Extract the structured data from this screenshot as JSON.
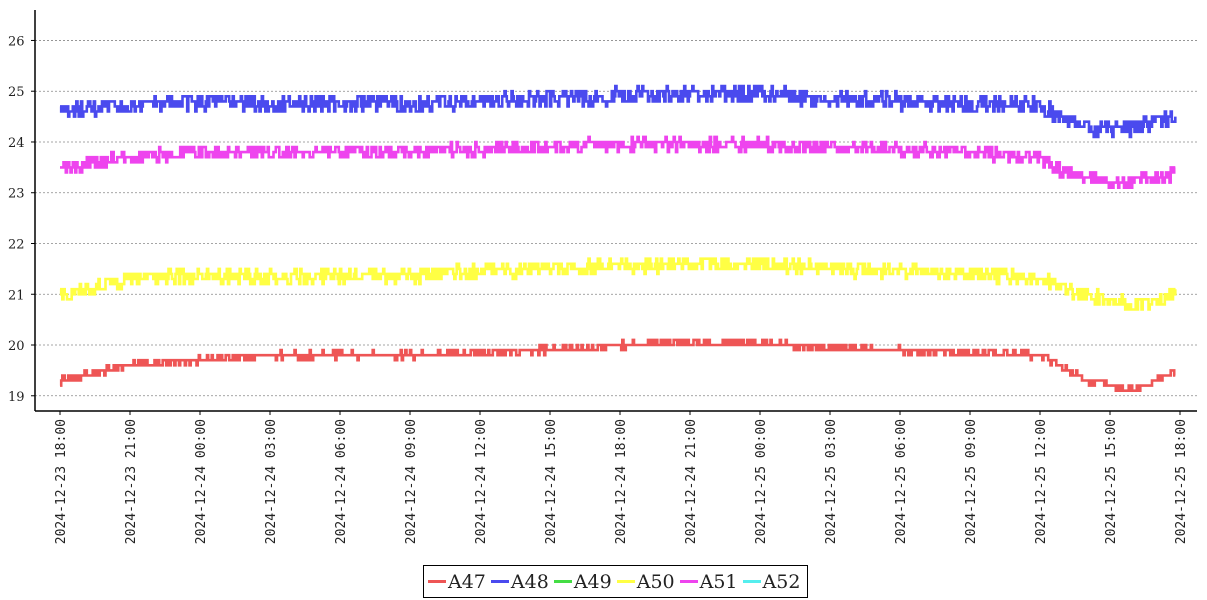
{
  "chart_data": {
    "type": "line",
    "title": "",
    "xlabel": "",
    "ylabel": "",
    "x_range": [
      "2024-12-23 18:00",
      "2024-12-25 18:00"
    ],
    "x_ticks": [
      "2024-12-23 18:00",
      "2024-12-23 21:00",
      "2024-12-24 00:00",
      "2024-12-24 03:00",
      "2024-12-24 06:00",
      "2024-12-24 09:00",
      "2024-12-24 12:00",
      "2024-12-24 15:00",
      "2024-12-24 18:00",
      "2024-12-24 21:00",
      "2024-12-25 00:00",
      "2024-12-25 03:00",
      "2024-12-25 06:00",
      "2024-12-25 09:00",
      "2024-12-25 12:00",
      "2024-12-25 15:00",
      "2024-12-25 18:00"
    ],
    "y_ticks": [
      19,
      20,
      21,
      22,
      23,
      24,
      25,
      26
    ],
    "ylim": [
      18.7,
      26.6
    ],
    "grid": "horizontal dotted",
    "legend_position": "bottom-center",
    "x_hours": [
      0,
      3,
      6,
      9,
      12,
      15,
      18,
      21,
      24,
      27,
      30,
      33,
      36,
      39,
      42,
      43,
      44,
      45,
      46,
      47,
      47.8
    ],
    "series": [
      {
        "name": "A47",
        "color": "#ee5555",
        "values": [
          19.3,
          19.6,
          19.7,
          19.8,
          19.8,
          19.8,
          19.85,
          19.9,
          20.0,
          20.05,
          20.05,
          19.95,
          19.9,
          19.85,
          19.8,
          19.55,
          19.3,
          19.2,
          19.1,
          19.3,
          19.5
        ],
        "noise": 0.06
      },
      {
        "name": "A48",
        "color": "#4a4aee",
        "values": [
          24.6,
          24.7,
          24.8,
          24.75,
          24.75,
          24.75,
          24.8,
          24.85,
          24.9,
          24.95,
          24.95,
          24.85,
          24.8,
          24.75,
          24.7,
          24.5,
          24.3,
          24.25,
          24.3,
          24.4,
          24.5
        ],
        "noise": 0.16
      },
      {
        "name": "A49",
        "color": "#44dd44",
        "values": [],
        "noise": 0
      },
      {
        "name": "A50",
        "color": "#ffff44",
        "values": [
          21.0,
          21.3,
          21.35,
          21.35,
          21.35,
          21.35,
          21.45,
          21.5,
          21.55,
          21.6,
          21.6,
          21.5,
          21.45,
          21.4,
          21.35,
          21.1,
          21.0,
          20.9,
          20.8,
          20.85,
          21.0
        ],
        "noise": 0.14
      },
      {
        "name": "A51",
        "color": "#ee44ee",
        "values": [
          23.5,
          23.7,
          23.8,
          23.8,
          23.8,
          23.8,
          23.85,
          23.9,
          23.95,
          23.95,
          23.95,
          23.9,
          23.85,
          23.8,
          23.7,
          23.4,
          23.3,
          23.25,
          23.2,
          23.3,
          23.4
        ],
        "noise": 0.13
      },
      {
        "name": "A52",
        "color": "#55eeee",
        "values": [],
        "noise": 0
      }
    ]
  }
}
